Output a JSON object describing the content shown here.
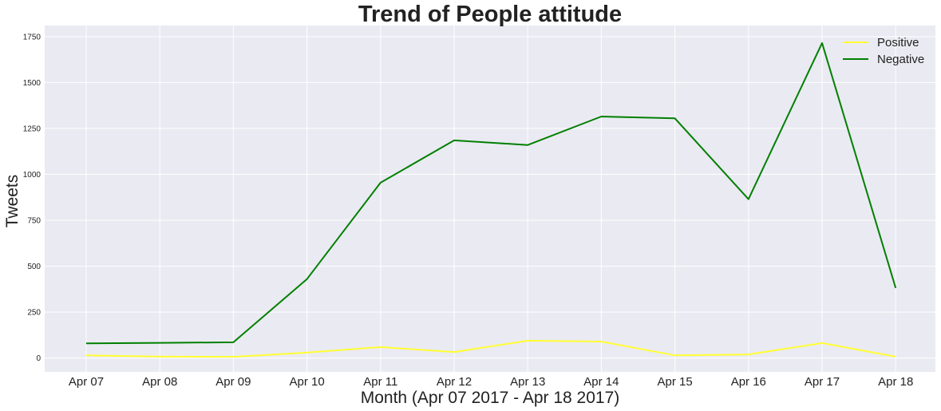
{
  "chart_data": {
    "type": "line",
    "title": "Trend of People attitude",
    "xlabel": "Month (Apr 07 2017 - Apr 18 2017)",
    "ylabel": "Tweets",
    "categories": [
      "Apr 07",
      "Apr 08",
      "Apr 09",
      "Apr 10",
      "Apr 11",
      "Apr 12",
      "Apr 13",
      "Apr 14",
      "Apr 15",
      "Apr 16",
      "Apr 17",
      "Apr 18"
    ],
    "yticks": [
      "0",
      "250",
      "500",
      "750",
      "1000",
      "1250",
      "1500",
      "1750"
    ],
    "ylim": [
      -75,
      1810
    ],
    "grid": true,
    "legend_position": "top-right",
    "series": [
      {
        "name": "Positive",
        "color": "#ffff33",
        "values": [
          15,
          8,
          7,
          30,
          60,
          33,
          95,
          90,
          15,
          20,
          82,
          8
        ]
      },
      {
        "name": "Negative",
        "color": "#008000",
        "values": [
          80,
          83,
          86,
          430,
          955,
          1185,
          1160,
          1315,
          1305,
          865,
          1715,
          382
        ]
      }
    ]
  }
}
